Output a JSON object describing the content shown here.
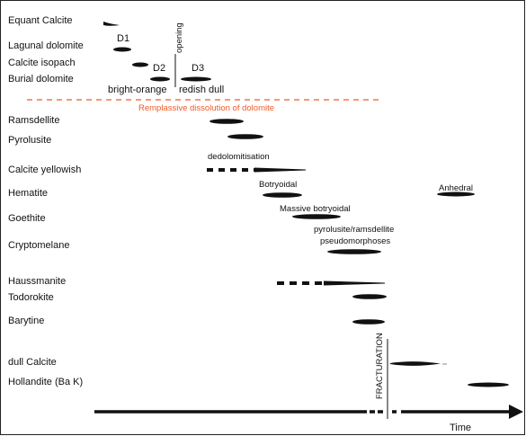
{
  "paragenesis": {
    "phases": [
      "Equant Calcite",
      "Lagunal dolomite",
      "Calcite isopach",
      "Burial dolomite",
      "Ramsdellite",
      "Pyrolusite",
      "Calcite yellowish",
      "Hematite",
      "Goethite",
      "Cryptomelane",
      "Haussmanite",
      "Todorokite",
      "Barytine",
      "dull Calcite",
      "Hollandite (Ba K)"
    ],
    "annotations": {
      "d1": "D1",
      "d2": "D2",
      "d3": "D3",
      "opening": "opening",
      "bright_orange": "bright-orange",
      "redish_dull": "redish dull",
      "dissolution": "Remplassive dissolution of dolomite",
      "dedolomitisation": "dedolomitisation",
      "botryoidal": "Botryoidal",
      "anhedral": "Anhedral",
      "massive_botryoidal": "Massive botryoidal",
      "pseudomorphoses_line1": "pyrolusite/ramsdellite",
      "pseudomorphoses_line2": "pseudomorphoses",
      "fracturation": "FRACTURATION",
      "time": "Time"
    },
    "colors": {
      "ink": "#111111",
      "dissolution": "#ef5a28"
    }
  }
}
